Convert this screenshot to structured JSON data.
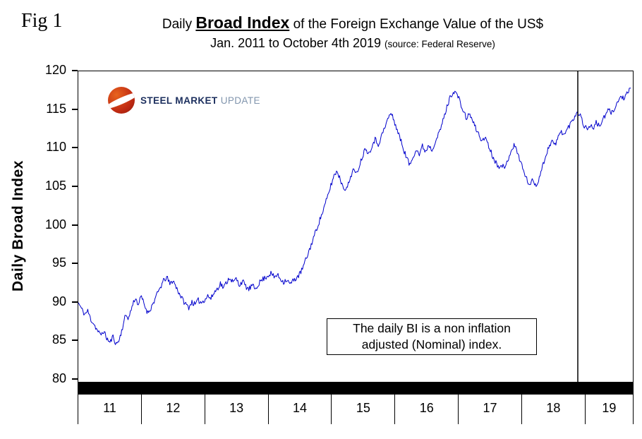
{
  "header": {
    "fig_label": "Fig 1",
    "title_prefix": "Daily ",
    "title_emphasis": "Broad Index",
    "title_suffix": " of the Foreign Exchange Value of the US$",
    "subtitle": "Jan. 2011 to October 4th 2019",
    "source": "(source: Federal Reserve)"
  },
  "logo": {
    "word1": "STEEL",
    "word2": "MARKET",
    "word3": "UPDATE"
  },
  "colors": {
    "line_color": "#0000cc",
    "axis_color": "#000000",
    "logo_navy": "#1c2f5e",
    "logo_gray": "#8195ad",
    "logo_orange": "#e8641e",
    "logo_red": "#c02a12"
  },
  "chart_data": {
    "type": "line",
    "title": "Daily Broad Index of the Foreign Exchange Value of the US$ — Jan. 2011 to October 4th 2019",
    "xlabel": "",
    "ylabel": "Daily Broad Index",
    "ylim": [
      80,
      120
    ],
    "y_ticks": [
      80,
      85,
      90,
      95,
      100,
      105,
      110,
      115,
      120
    ],
    "x_ticks": [
      "11",
      "12",
      "13",
      "14",
      "15",
      "16",
      "17",
      "18",
      "19"
    ],
    "x_tick_years": [
      2011,
      2012,
      2013,
      2014,
      2015,
      2016,
      2017,
      2018,
      2019
    ],
    "x_range": [
      2011.0,
      2019.77
    ],
    "grid": false,
    "legend": null,
    "marker_line_x": 2018.91,
    "daily_noise_amplitude": 0.35,
    "annotation_box": {
      "line1": "The daily BI is a non inflation",
      "line2": "adjusted (Nominal) index."
    },
    "x_start": 2011.0,
    "x_step": 0.05,
    "series": [
      {
        "name": "Daily Broad Index",
        "y": [
          90.0,
          89.2,
          88.5,
          88.9,
          87.8,
          87.2,
          86.4,
          85.8,
          86.3,
          85.4,
          84.8,
          85.6,
          84.6,
          85.2,
          86.8,
          88.4,
          88.0,
          89.5,
          90.6,
          89.8,
          90.8,
          89.6,
          88.7,
          89.3,
          90.2,
          91.1,
          92.0,
          92.8,
          93.3,
          92.4,
          92.9,
          92.0,
          91.2,
          90.4,
          89.8,
          89.4,
          90.1,
          89.7,
          90.3,
          90.0,
          90.4,
          90.9,
          90.5,
          91.3,
          91.8,
          92.5,
          91.9,
          92.7,
          93.3,
          92.6,
          93.1,
          92.3,
          92.8,
          92.1,
          91.7,
          92.2,
          91.8,
          92.4,
          92.9,
          93.2,
          93.5,
          93.8,
          93.3,
          93.6,
          93.1,
          92.7,
          93.0,
          92.4,
          92.8,
          93.2,
          93.6,
          94.4,
          95.5,
          96.6,
          97.8,
          99.0,
          100.2,
          101.3,
          102.5,
          103.8,
          105.2,
          106.5,
          107.1,
          105.9,
          105.0,
          104.7,
          106.0,
          107.3,
          106.6,
          107.8,
          109.0,
          110.1,
          109.3,
          110.4,
          111.2,
          110.5,
          111.6,
          112.6,
          113.8,
          114.6,
          113.6,
          112.4,
          111.2,
          109.9,
          108.8,
          107.8,
          108.9,
          110.0,
          109.2,
          110.3,
          109.6,
          110.5,
          109.8,
          110.9,
          111.7,
          112.9,
          114.3,
          115.7,
          116.9,
          117.4,
          117.0,
          115.9,
          114.7,
          113.9,
          114.5,
          113.4,
          112.5,
          111.7,
          110.9,
          111.5,
          110.3,
          109.2,
          108.4,
          107.6,
          108.1,
          107.2,
          108.5,
          109.7,
          110.4,
          109.6,
          108.4,
          107.1,
          106.0,
          105.3,
          105.9,
          105.1,
          106.3,
          107.6,
          109.0,
          110.2,
          111.0,
          110.4,
          111.5,
          112.2,
          111.8,
          112.6,
          113.3,
          114.0,
          114.8,
          114.3,
          113.1,
          112.5,
          113.0,
          112.6,
          113.3,
          112.9,
          113.6,
          114.3,
          115.0,
          114.6,
          115.4,
          116.1,
          116.8,
          116.4,
          117.2,
          117.8
        ]
      }
    ]
  }
}
